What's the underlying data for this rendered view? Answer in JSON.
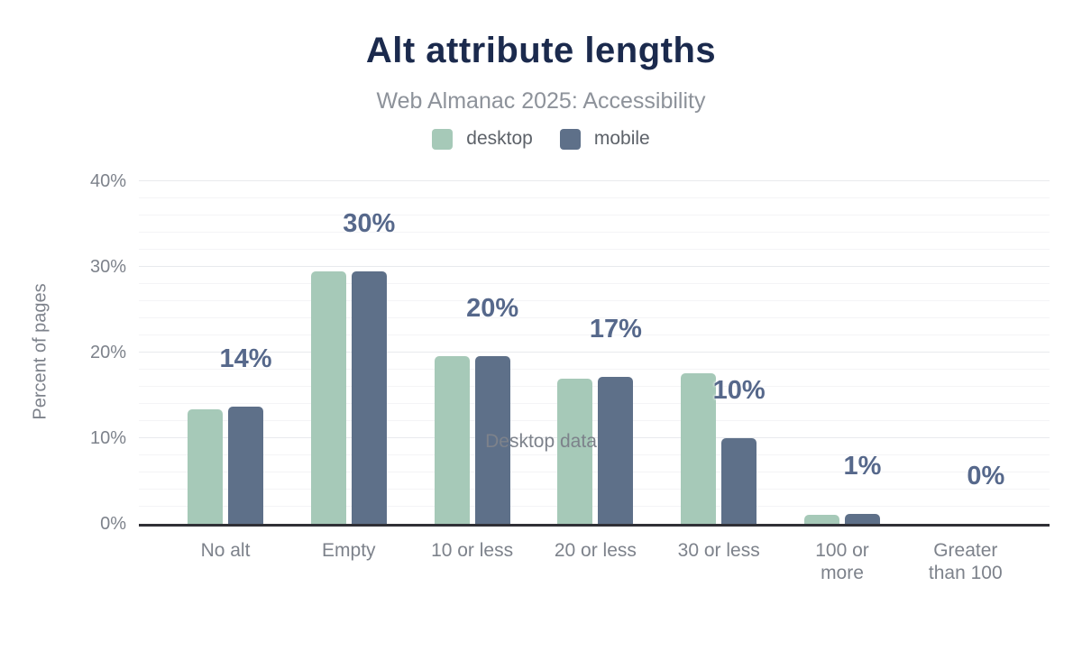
{
  "header": {
    "title": "Alt attribute lengths",
    "subtitle": "Web Almanac 2025: Accessibility"
  },
  "legend": {
    "items": [
      {
        "label": "desktop",
        "color": "#a6c9b8"
      },
      {
        "label": "mobile",
        "color": "#5e7089"
      }
    ]
  },
  "chart_data": {
    "type": "bar",
    "title": "Alt attribute lengths",
    "subtitle": "Web Almanac 2025: Accessibility",
    "xlabel": "Desktop data",
    "ylabel": "Percent of pages",
    "categories": [
      "No alt",
      "Empty",
      "10 or less",
      "20 or less",
      "30 or less",
      "100 or more",
      "Greater than 100"
    ],
    "category_lines": [
      [
        "No alt"
      ],
      [
        "Empty"
      ],
      [
        "10 or less"
      ],
      [
        "20 or less"
      ],
      [
        "30 or less"
      ],
      [
        "100 or",
        "more"
      ],
      [
        "Greater",
        "than 100"
      ]
    ],
    "series": [
      {
        "name": "desktop",
        "color": "#a6c9b8",
        "values": [
          13.4,
          29.5,
          19.6,
          16.9,
          17.6,
          1.1,
          0
        ]
      },
      {
        "name": "mobile",
        "color": "#5e7089",
        "values": [
          13.7,
          29.5,
          19.6,
          17.2,
          10.0,
          1.2,
          0
        ]
      }
    ],
    "bar_labels": [
      "14%",
      "30%",
      "20%",
      "17%",
      "10%",
      "1%",
      "0%"
    ],
    "bar_labels_series": "mobile",
    "ylim": [
      0,
      40
    ],
    "y_ticks": [
      {
        "label": "0%",
        "value": 0
      },
      {
        "label": "10%",
        "value": 10
      },
      {
        "label": "20%",
        "value": 20
      },
      {
        "label": "30%",
        "value": 30
      },
      {
        "label": "40%",
        "value": 40
      }
    ],
    "minor_grid_step": 2,
    "grid": true,
    "legend_position": "top"
  },
  "colors": {
    "title": "#1b2a4d",
    "subtitle_text": "#8d929a",
    "legend_text": "#5d6269",
    "axis_text": "#7d828b",
    "bar_label": "#56688b",
    "grid_major": "#e8eaed",
    "grid_minor": "#f4f4f6",
    "baseline": "#303036",
    "page_bg": "#ffffff"
  }
}
